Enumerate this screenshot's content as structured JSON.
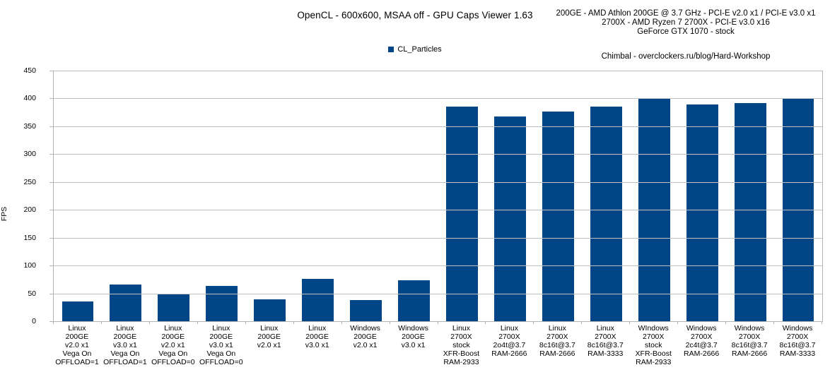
{
  "header": {
    "title": "OpenCL - 600x600, MSAA off - GPU Caps Viewer 1.63",
    "system_info": [
      "200GE - AMD Athlon 200GE @ 3.7 GHz - PCI-E v2.0 x1 / PCI-E v3.0 x1",
      "2700X - AMD Ryzen 7 2700X - PCI-E v3.0 x16",
      "GeForce GTX 1070 - stock"
    ],
    "credit": "Chimbal - overclockers.ru/blog/Hard-Workshop"
  },
  "legend": {
    "label": "CL_Particles",
    "swatch_color": "#004586"
  },
  "colors": {
    "bar": "#004586",
    "gridline": "#c0c0c0",
    "axis": "#b3b3b3"
  },
  "chart_data": {
    "type": "bar",
    "title": "OpenCL - 600x600, MSAA off - GPU Caps Viewer 1.63",
    "xlabel": "",
    "ylabel": "FPS",
    "ylim": [
      0,
      450
    ],
    "ytick_step": 50,
    "grid": true,
    "legend_position": "top",
    "categories": [
      [
        "Linux",
        "200GE",
        "v2.0 x1",
        "Vega On",
        "OFFLOAD=1"
      ],
      [
        "Linux",
        "200GE",
        "v3.0 x1",
        "Vega On",
        "OFFLOAD=1"
      ],
      [
        "Linux",
        "200GE",
        "v2.0 x1",
        "Vega On",
        "OFFLOAD=0"
      ],
      [
        "Linux",
        "200GE",
        "v3.0 x1",
        "Vega On",
        "OFFLOAD=0"
      ],
      [
        "Linux",
        "200GE",
        "v2.0 x1"
      ],
      [
        "Linux",
        "200GE",
        "v3.0 x1"
      ],
      [
        "Windows",
        "200GE",
        "v2.0 x1"
      ],
      [
        "Windows",
        "200GE",
        "v3.0 x1"
      ],
      [
        "Linux",
        "2700X",
        "stock",
        "XFR-Boost",
        "RAM-2933"
      ],
      [
        "Linux",
        "2700X",
        "2o4t@3.7",
        "RAM-2666"
      ],
      [
        "Linux",
        "2700X",
        "8c16t@3.7",
        "RAM-2666"
      ],
      [
        "Linux",
        "2700X",
        "8c16t@3.7",
        "RAM-3333"
      ],
      [
        "WIndows",
        "2700X",
        "stock",
        "XFR-Boost",
        "RAM-2933"
      ],
      [
        "Windows",
        "2700X",
        "2c4t@3.7",
        "RAM-2666"
      ],
      [
        "Windows",
        "2700X",
        "8c16t@3.7",
        "RAM-2666"
      ],
      [
        "Windows",
        "2700X",
        "8c16t@3.7",
        "RAM-3333"
      ]
    ],
    "series": [
      {
        "name": "CL_Particles",
        "color": "#004586",
        "values": [
          35,
          66,
          48,
          64,
          39,
          76,
          38,
          73,
          386,
          367,
          376,
          386,
          400,
          389,
          392,
          399
        ]
      }
    ]
  }
}
